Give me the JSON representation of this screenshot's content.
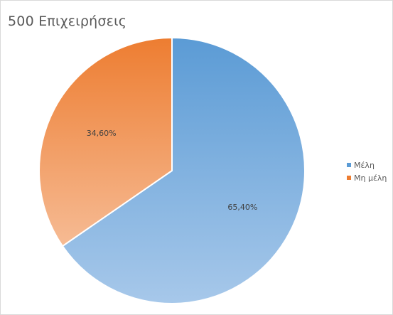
{
  "chart_data": {
    "type": "pie",
    "title": "500 Επιχειρήσεις",
    "categories": [
      "Μέλη",
      "Μη μέλη"
    ],
    "values": [
      65.4,
      34.6
    ],
    "data_labels": [
      "65,40%",
      "34,60%"
    ],
    "colors": [
      "#5b9bd5",
      "#ed7d31"
    ],
    "legend_position": "right"
  }
}
